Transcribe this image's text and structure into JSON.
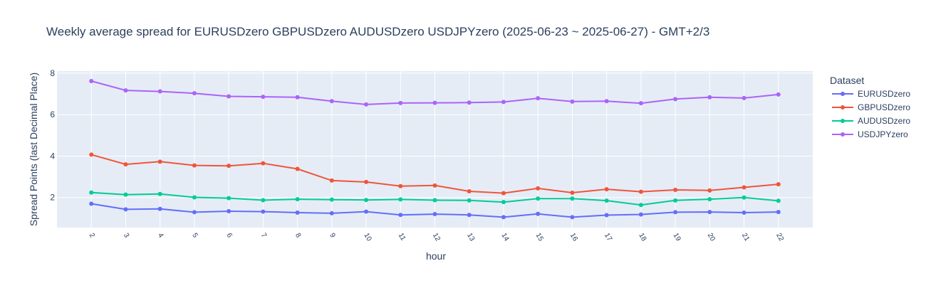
{
  "chart_data": {
    "type": "line",
    "title": "Weekly average spread for  EURUSDzero GBPUSDzero AUDUSDzero USDJPYzero (2025-06-23 ~ 2025-06-27) - GMT+2/3",
    "xlabel": "hour",
    "ylabel": "Spread Points (last Decimal Place)",
    "x": [
      2,
      3,
      4,
      5,
      6,
      7,
      8,
      9,
      10,
      11,
      12,
      13,
      14,
      15,
      16,
      17,
      18,
      19,
      20,
      21,
      22
    ],
    "xlim": [
      1,
      23
    ],
    "ylim": [
      0.55,
      8.1
    ],
    "yticks": [
      2,
      4,
      6,
      8
    ],
    "grid": true,
    "legend": {
      "title": "Dataset",
      "placement": "top-right"
    },
    "series": [
      {
        "name": "EURUSDzero",
        "color": "#636efa",
        "values": [
          1.7,
          1.43,
          1.45,
          1.29,
          1.34,
          1.32,
          1.27,
          1.24,
          1.32,
          1.16,
          1.2,
          1.16,
          1.05,
          1.21,
          1.05,
          1.15,
          1.18,
          1.29,
          1.3,
          1.27,
          1.3
        ]
      },
      {
        "name": "GBPUSDzero",
        "color": "#ef553b",
        "values": [
          4.07,
          3.6,
          3.73,
          3.55,
          3.53,
          3.65,
          3.38,
          2.82,
          2.75,
          2.55,
          2.58,
          2.3,
          2.21,
          2.44,
          2.23,
          2.4,
          2.28,
          2.37,
          2.34,
          2.49,
          2.64
        ]
      },
      {
        "name": "AUDUSDzero",
        "color": "#00cc96",
        "values": [
          2.24,
          2.14,
          2.17,
          2.01,
          1.97,
          1.87,
          1.92,
          1.9,
          1.88,
          1.91,
          1.87,
          1.86,
          1.78,
          1.95,
          1.95,
          1.85,
          1.64,
          1.86,
          1.92,
          2.0,
          1.84
        ]
      },
      {
        "name": "USDJPYzero",
        "color": "#ab63fa",
        "values": [
          7.62,
          7.17,
          7.12,
          7.03,
          6.88,
          6.86,
          6.84,
          6.65,
          6.49,
          6.56,
          6.57,
          6.58,
          6.61,
          6.79,
          6.63,
          6.65,
          6.55,
          6.75,
          6.84,
          6.8,
          6.97
        ]
      }
    ]
  }
}
